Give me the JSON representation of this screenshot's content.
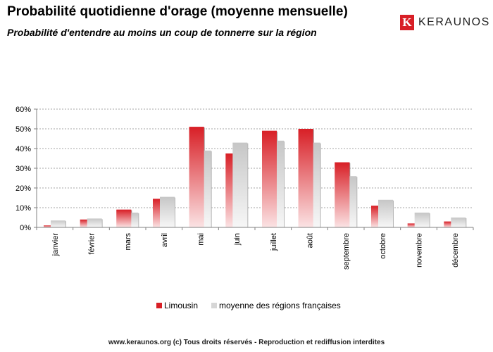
{
  "header": {
    "title": "Probabilité quotidienne d'orage (moyenne mensuelle)",
    "subtitle": "Probabilité d'entendre au moins un coup de tonnerre sur la région"
  },
  "logo": {
    "text": "KERAUNOS",
    "mark": "K",
    "color": "#d81f26"
  },
  "footer": {
    "text": "www.keraunos.org  (c) Tous droits réservés - Reproduction et rediffusion interdites"
  },
  "chart_data": {
    "type": "bar",
    "title": "Probabilité quotidienne d'orage (moyenne mensuelle)",
    "subtitle": "Probabilité d'entendre au moins un coup de tonnerre sur la région",
    "xlabel": "",
    "ylabel": "",
    "categories": [
      "janvier",
      "février",
      "mars",
      "avril",
      "mai",
      "juin",
      "juillet",
      "août",
      "septembre",
      "octobre",
      "novembre",
      "décembre"
    ],
    "series": [
      {
        "name": "Limousin",
        "values": [
          1,
          4,
          9,
          14.5,
          51,
          37.5,
          49,
          50,
          33,
          11,
          2,
          3
        ],
        "color": "#d81f26"
      },
      {
        "name": "moyenne des régions françaises",
        "values": [
          3.5,
          4.5,
          7.5,
          15.5,
          39,
          43,
          44,
          43,
          26,
          14,
          7.5,
          5
        ],
        "color": "#c8c8c8"
      }
    ],
    "ylim": [
      0,
      60
    ],
    "yticks": [
      "0%",
      "10%",
      "20%",
      "30%",
      "40%",
      "50%",
      "60%"
    ],
    "grid": true,
    "legend": "bottom"
  }
}
